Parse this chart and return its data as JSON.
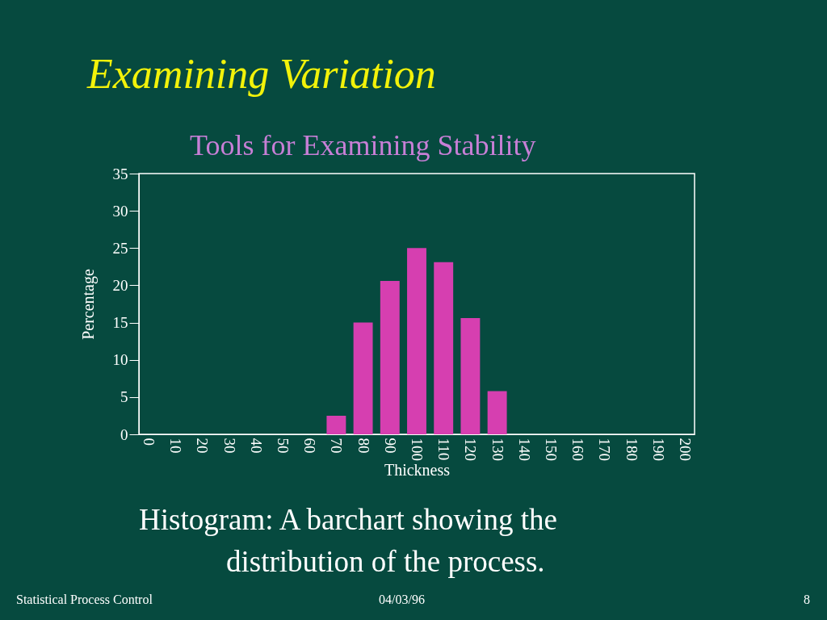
{
  "chart_data": {
    "type": "bar",
    "title": "Examining Variation",
    "subtitle": "Tools for Examining Stability",
    "xlabel": "Thickness",
    "ylabel": "Percentage",
    "categories": [
      "0",
      "10",
      "20",
      "30",
      "40",
      "50",
      "60",
      "70",
      "80",
      "90",
      "100",
      "110",
      "120",
      "130",
      "140",
      "150",
      "160",
      "170",
      "180",
      "190",
      "200"
    ],
    "values": [
      0,
      0,
      0,
      0,
      0,
      0,
      0,
      2.5,
      15,
      20.6,
      25,
      23.1,
      15.6,
      5.8,
      0,
      0,
      0,
      0,
      0,
      0,
      0
    ],
    "color": "#d63fb0",
    "ylim": [
      0,
      35
    ],
    "yticks": [
      0,
      5,
      10,
      15,
      20,
      25,
      30,
      35
    ],
    "grid": false,
    "annotations": [
      "Histogram: A barchart showing the distribution of the process.",
      "Statistical Process Control",
      "04/03/96",
      "8"
    ]
  }
}
